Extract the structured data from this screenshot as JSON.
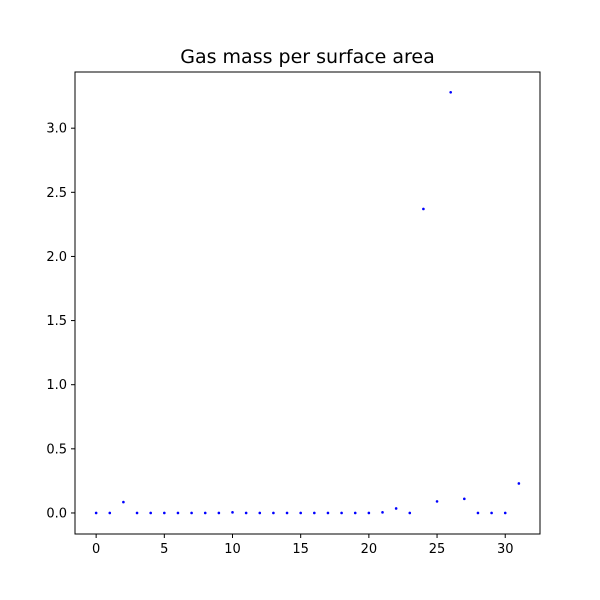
{
  "chart_data": {
    "type": "scatter",
    "title": "Gas mass per surface area",
    "xlabel": "",
    "ylabel": "",
    "xlim": [
      -1.55,
      32.55
    ],
    "ylim": [
      -0.164,
      3.438
    ],
    "grid": false,
    "marker_color": "#0000ff",
    "x_ticks": [
      0,
      5,
      10,
      15,
      20,
      25,
      30
    ],
    "x_tick_labels": [
      "0",
      "5",
      "10",
      "15",
      "20",
      "25",
      "30"
    ],
    "y_ticks": [
      0.0,
      0.5,
      1.0,
      1.5,
      2.0,
      2.5,
      3.0
    ],
    "y_tick_labels": [
      "0.0",
      "0.5",
      "1.0",
      "1.5",
      "2.0",
      "2.5",
      "3.0"
    ],
    "series": [
      {
        "x": [
          0,
          1,
          2,
          3,
          4,
          5,
          6,
          7,
          8,
          9,
          10,
          11,
          12,
          13,
          14,
          15,
          16,
          17,
          18,
          19,
          20,
          21,
          22,
          23,
          24,
          25,
          26,
          27,
          28,
          29,
          30,
          31
        ],
        "y": [
          0.0,
          0.0,
          0.085,
          0.0,
          0.0,
          0.0,
          0.0,
          0.0,
          0.0,
          0.0,
          0.005,
          0.0,
          0.0,
          0.0,
          0.0,
          0.0,
          0.0,
          0.0,
          0.0,
          0.0,
          0.0,
          0.005,
          0.035,
          0.0,
          2.37,
          0.09,
          3.28,
          0.11,
          0.0,
          0.0,
          0.0,
          0.23
        ]
      }
    ]
  }
}
